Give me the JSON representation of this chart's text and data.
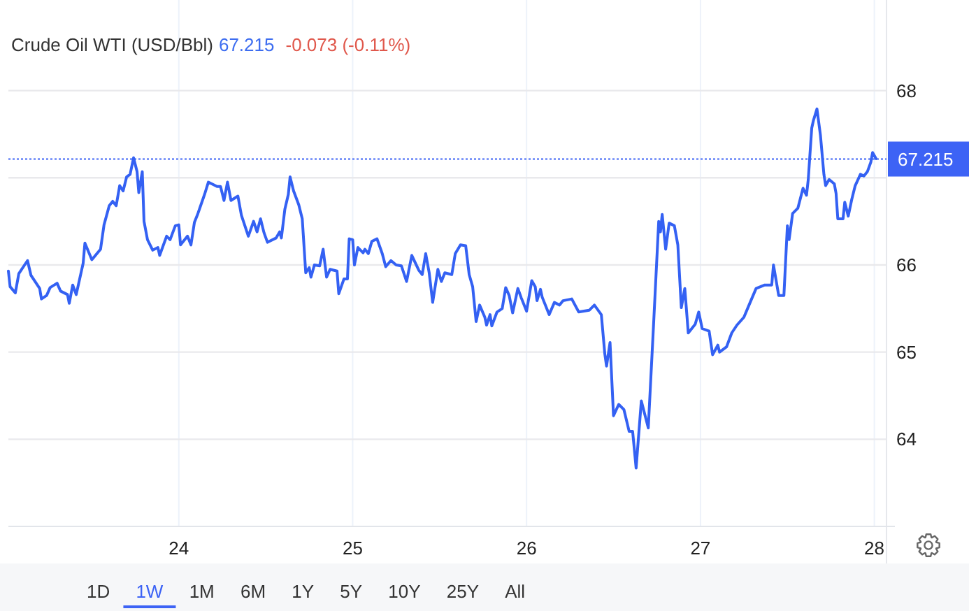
{
  "chart_data": {
    "type": "line",
    "title": "Crude Oil WTI (USD/Bbl)",
    "annotations": [
      "67.215",
      "-0.073 (-0.11%)",
      "1D",
      "1W",
      "1M",
      "6M",
      "1Y",
      "5Y",
      "10Y",
      "25Y",
      "All"
    ],
    "x": [
      23.02,
      23.03,
      23.06,
      23.08,
      23.13,
      23.15,
      23.2,
      23.21,
      23.24,
      23.26,
      23.3,
      23.32,
      23.36,
      23.37,
      23.39,
      23.41,
      23.45,
      23.46,
      23.5,
      23.55,
      23.57,
      23.6,
      23.62,
      23.64,
      23.66,
      23.68,
      23.7,
      23.72,
      23.74,
      23.76,
      23.77,
      23.79,
      23.8,
      23.82,
      23.85,
      23.88,
      23.89,
      23.93,
      23.95,
      23.98,
      24.0,
      24.01,
      24.05,
      24.07,
      24.09,
      24.11,
      24.15,
      24.17,
      24.22,
      24.24,
      24.26,
      24.28,
      24.3,
      24.34,
      24.36,
      24.4,
      24.43,
      24.45,
      24.47,
      24.49,
      24.51,
      24.56,
      24.58,
      24.59,
      24.61,
      24.63,
      24.64,
      24.66,
      24.69,
      24.71,
      24.73,
      24.75,
      24.76,
      24.78,
      24.81,
      24.83,
      24.85,
      24.87,
      24.91,
      24.92,
      24.95,
      24.97,
      24.98,
      25.0,
      25.01,
      25.03,
      25.06,
      25.07,
      25.09,
      25.11,
      25.14,
      25.17,
      25.19,
      25.22,
      25.25,
      25.28,
      25.31,
      25.34,
      25.38,
      25.4,
      25.42,
      25.44,
      25.46,
      25.49,
      25.51,
      25.53,
      25.57,
      25.59,
      25.62,
      25.65,
      25.67,
      25.69,
      25.71,
      25.73,
      25.76,
      25.77,
      25.79,
      25.8,
      25.83,
      25.86,
      25.88,
      25.9,
      25.92,
      25.95,
      25.97,
      26.0,
      26.03,
      26.05,
      26.06,
      26.08,
      26.09,
      26.13,
      26.16,
      26.19,
      26.21,
      26.26,
      26.3,
      26.36,
      26.39,
      26.43,
      26.45,
      26.46,
      26.48,
      26.5,
      26.53,
      26.56,
      26.59,
      26.61,
      26.63,
      26.66,
      26.7,
      26.73,
      26.76,
      26.77,
      26.78,
      26.8,
      26.82,
      26.85,
      26.87,
      26.89,
      26.91,
      26.93,
      26.97,
      26.99,
      27.01,
      27.05,
      27.07,
      27.1,
      27.11,
      27.15,
      27.18,
      27.21,
      27.25,
      27.29,
      27.32,
      27.37,
      27.41,
      27.42,
      27.45,
      27.48,
      27.5,
      27.51,
      27.53,
      27.56,
      27.59,
      27.61,
      27.62,
      27.64,
      27.65,
      27.67,
      27.69,
      27.71,
      27.72,
      27.74,
      27.77,
      27.78,
      27.79,
      27.82,
      27.83,
      27.85,
      27.87,
      27.89,
      27.92,
      27.94,
      27.96,
      27.98,
      27.99,
      28.01
    ],
    "series": [
      {
        "color": "#3461f3",
        "values": [
          65.93,
          65.75,
          65.68,
          65.9,
          66.05,
          65.88,
          65.73,
          65.61,
          65.65,
          65.74,
          65.79,
          65.7,
          65.66,
          65.56,
          65.77,
          65.66,
          66.02,
          66.25,
          66.06,
          66.18,
          66.46,
          66.68,
          66.73,
          66.68,
          66.91,
          66.85,
          67.01,
          67.04,
          67.23,
          67.07,
          66.83,
          67.07,
          66.5,
          66.29,
          66.17,
          66.2,
          66.11,
          66.33,
          66.29,
          66.45,
          66.46,
          66.23,
          66.33,
          66.23,
          66.49,
          66.59,
          66.82,
          66.95,
          66.9,
          66.9,
          66.74,
          66.95,
          66.74,
          66.79,
          66.57,
          66.33,
          66.5,
          66.38,
          66.53,
          66.37,
          66.26,
          66.31,
          66.38,
          66.31,
          66.64,
          66.81,
          67.01,
          66.85,
          66.69,
          66.53,
          65.91,
          65.97,
          65.86,
          66.0,
          65.99,
          66.18,
          65.86,
          65.95,
          65.93,
          65.67,
          65.84,
          65.84,
          66.3,
          66.29,
          66.0,
          66.2,
          66.14,
          66.18,
          66.13,
          66.27,
          66.3,
          66.13,
          65.98,
          66.05,
          66.0,
          65.99,
          65.81,
          66.11,
          65.94,
          65.89,
          66.13,
          65.91,
          65.57,
          65.95,
          65.81,
          65.91,
          65.89,
          66.13,
          66.23,
          66.22,
          65.89,
          65.75,
          65.35,
          65.54,
          65.4,
          65.31,
          65.43,
          65.3,
          65.46,
          65.5,
          65.74,
          65.65,
          65.45,
          65.73,
          65.62,
          65.47,
          65.82,
          65.75,
          65.59,
          65.72,
          65.63,
          65.43,
          65.57,
          65.54,
          65.59,
          65.61,
          65.46,
          65.48,
          65.54,
          65.43,
          64.98,
          64.84,
          65.11,
          64.27,
          64.4,
          64.34,
          64.09,
          64.09,
          63.67,
          64.44,
          64.13,
          65.3,
          66.5,
          66.38,
          66.58,
          66.18,
          66.48,
          66.45,
          66.23,
          65.51,
          65.73,
          65.22,
          65.32,
          65.46,
          65.27,
          65.24,
          64.97,
          65.08,
          65.0,
          65.06,
          65.22,
          65.31,
          65.4,
          65.59,
          65.73,
          65.77,
          65.77,
          66.0,
          65.65,
          65.65,
          66.45,
          66.29,
          66.59,
          66.65,
          66.88,
          66.8,
          66.98,
          67.57,
          67.66,
          67.79,
          67.49,
          67.04,
          66.91,
          66.98,
          66.93,
          66.82,
          66.53,
          66.53,
          66.72,
          66.56,
          66.75,
          66.91,
          67.04,
          67.02,
          67.07,
          67.18,
          67.29,
          67.22
        ]
      }
    ],
    "xlim": [
      23.02,
      28.07
    ],
    "ylim": [
      63,
      69.04
    ],
    "xticks": [
      24,
      25,
      26,
      27,
      28
    ],
    "yticks": [
      64,
      65,
      66,
      {
        "value": 67,
        "label": null
      },
      68
    ],
    "grid": true,
    "ref_lines": [
      {
        "axis": "y",
        "value": 67.215,
        "label": "67.215",
        "color": "#3d63f5",
        "line_style": "dotted"
      }
    ]
  }
}
